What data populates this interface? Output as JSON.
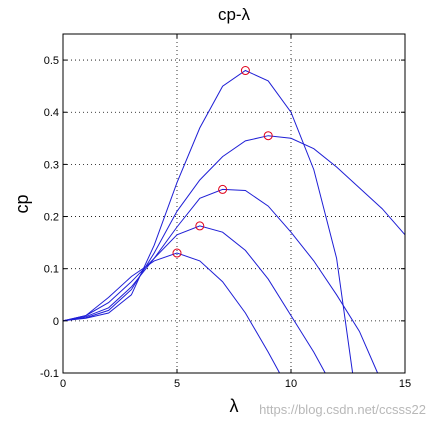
{
  "chart_data": {
    "type": "line",
    "title": "cp-λ",
    "xlabel": "λ",
    "ylabel": "cp",
    "xlim": [
      0,
      15
    ],
    "ylim": [
      -0.1,
      0.55
    ],
    "xticks": [
      0,
      5,
      10,
      15
    ],
    "yticks": [
      -0.1,
      0,
      0.1,
      0.2,
      0.3,
      0.4,
      0.5
    ],
    "xtick_labels": [
      "0",
      "5",
      "10",
      "15"
    ],
    "ytick_labels": [
      "-0.1",
      "0",
      "0.1",
      "0.2",
      "0.3",
      "0.4",
      "0.5"
    ],
    "grid": true,
    "line_color": "#1f1fd6",
    "marker_color": "#e0001a",
    "series": [
      {
        "values": [
          [
            0,
            0
          ],
          [
            1,
            0.01
          ],
          [
            2,
            0.045
          ],
          [
            3,
            0.085
          ],
          [
            4,
            0.115
          ],
          [
            5,
            0.13
          ],
          [
            6,
            0.115
          ],
          [
            7,
            0.075
          ],
          [
            8,
            0.015
          ],
          [
            9,
            -0.06
          ],
          [
            9.5,
            -0.1
          ]
        ],
        "peak": [
          5,
          0.13
        ]
      },
      {
        "values": [
          [
            0,
            0
          ],
          [
            1,
            0.01
          ],
          [
            2,
            0.035
          ],
          [
            3,
            0.075
          ],
          [
            4,
            0.12
          ],
          [
            5,
            0.165
          ],
          [
            6,
            0.182
          ],
          [
            7,
            0.17
          ],
          [
            8,
            0.135
          ],
          [
            9,
            0.08
          ],
          [
            10,
            0.01
          ],
          [
            11,
            -0.06
          ],
          [
            11.5,
            -0.1
          ]
        ],
        "peak": [
          6,
          0.182
        ]
      },
      {
        "values": [
          [
            0,
            0
          ],
          [
            1,
            0.008
          ],
          [
            2,
            0.025
          ],
          [
            3,
            0.065
          ],
          [
            4,
            0.12
          ],
          [
            5,
            0.18
          ],
          [
            6,
            0.235
          ],
          [
            7,
            0.252
          ],
          [
            8,
            0.25
          ],
          [
            9,
            0.22
          ],
          [
            10,
            0.17
          ],
          [
            11,
            0.115
          ],
          [
            12,
            0.05
          ],
          [
            13,
            -0.02
          ],
          [
            13.8,
            -0.1
          ]
        ],
        "peak": [
          7,
          0.252
        ]
      },
      {
        "values": [
          [
            0,
            0
          ],
          [
            1,
            0.006
          ],
          [
            2,
            0.02
          ],
          [
            3,
            0.06
          ],
          [
            4,
            0.13
          ],
          [
            5,
            0.21
          ],
          [
            6,
            0.27
          ],
          [
            7,
            0.315
          ],
          [
            8,
            0.345
          ],
          [
            9,
            0.355
          ],
          [
            10,
            0.35
          ],
          [
            11,
            0.33
          ],
          [
            12,
            0.295
          ],
          [
            13,
            0.255
          ],
          [
            14,
            0.215
          ],
          [
            15,
            0.165
          ]
        ],
        "peak": [
          9,
          0.355
        ]
      },
      {
        "values": [
          [
            0,
            0
          ],
          [
            1,
            0.005
          ],
          [
            2,
            0.015
          ],
          [
            3,
            0.05
          ],
          [
            4,
            0.145
          ],
          [
            5,
            0.265
          ],
          [
            6,
            0.37
          ],
          [
            7,
            0.45
          ],
          [
            8,
            0.48
          ],
          [
            9,
            0.46
          ],
          [
            10,
            0.4
          ],
          [
            11,
            0.29
          ],
          [
            12,
            0.12
          ],
          [
            12.7,
            -0.1
          ]
        ],
        "peak": [
          8,
          0.48
        ]
      }
    ]
  },
  "watermark": "https://blog.csdn.net/ccsss22"
}
